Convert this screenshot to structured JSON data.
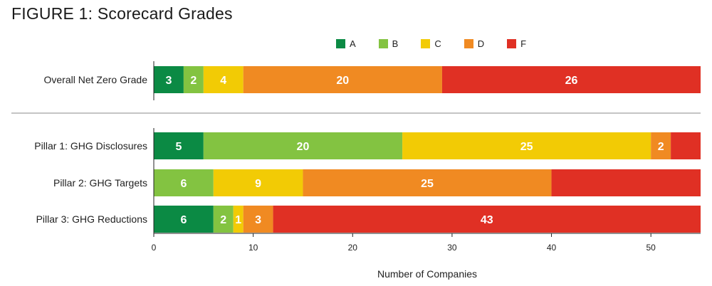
{
  "chart_data": {
    "type": "bar",
    "orientation": "horizontal",
    "stacked": true,
    "title": "FIGURE 1: Scorecard Grades",
    "xlabel": "Number of Companies",
    "ylabel": "",
    "xlim": [
      0,
      55
    ],
    "xticks": [
      0,
      10,
      20,
      30,
      40,
      50
    ],
    "grid": false,
    "legend_position": "top",
    "categories": [
      "Overall Net Zero Grade",
      "Pillar 1: GHG Disclosures",
      "Pillar 2: GHG Targets",
      "Pillar 3: GHG Reductions"
    ],
    "series": [
      {
        "name": "A",
        "color": "#0b8a44",
        "values": [
          3,
          5,
          0,
          6
        ],
        "labels": [
          "3",
          "5",
          "",
          "6"
        ]
      },
      {
        "name": "B",
        "color": "#83c341",
        "values": [
          2,
          20,
          6,
          2
        ],
        "labels": [
          "2",
          "20",
          "6",
          "2"
        ]
      },
      {
        "name": "C",
        "color": "#f2cb05",
        "values": [
          4,
          25,
          9,
          1
        ],
        "labels": [
          "4",
          "25",
          "9",
          "1"
        ]
      },
      {
        "name": "D",
        "color": "#f08a22",
        "values": [
          20,
          2,
          25,
          3
        ],
        "labels": [
          "20",
          "2",
          "25",
          "3"
        ]
      },
      {
        "name": "F",
        "color": "#e03024",
        "values": [
          26,
          3,
          15,
          43
        ],
        "labels": [
          "26",
          "",
          "",
          "43"
        ]
      }
    ]
  }
}
